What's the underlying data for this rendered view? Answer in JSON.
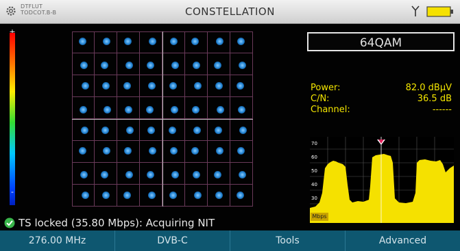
{
  "header": {
    "device_line1": "DTFLUT",
    "device_line2": "TODCOT.B-B",
    "title": "CONSTELLATION",
    "icons": [
      "settings-icon",
      "antenna-icon",
      "battery-icon"
    ],
    "battery_color": "#f5e100"
  },
  "colorscale": {
    "max_label": "+",
    "min_label": "-"
  },
  "constellation": {
    "rows": 8,
    "cols": 8,
    "point_color": "#1e7fd0"
  },
  "modulation": "64QAM",
  "measurements": [
    {
      "label": "Power:",
      "value": "82.0 dBμV"
    },
    {
      "label": "C/N:",
      "value": "36.5 dB"
    },
    {
      "label": "Channel:",
      "value": "------"
    }
  ],
  "spectrum": {
    "tag": "Mbps",
    "y_ticks": [
      "70",
      "60",
      "50",
      "40",
      "30"
    ],
    "color": "#f5e100"
  },
  "status": {
    "text": "TS locked (35.80 Mbps): Acquiring NIT",
    "icon": "check-icon"
  },
  "menu": {
    "frequency": "276.00 MHz",
    "standard": "DVB-C",
    "tools": "Tools",
    "advanced": "Advanced"
  }
}
